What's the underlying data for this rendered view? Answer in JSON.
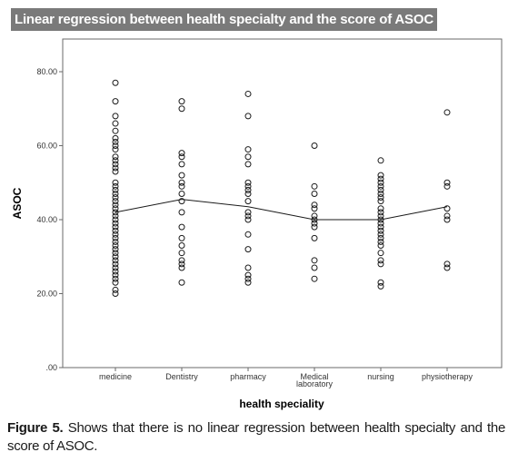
{
  "header": {
    "title": "Linear regression between health specialty and the score of ASOC"
  },
  "caption": {
    "lead": "Figure 5.",
    "text": " Shows that there is no linear regression between health specialty and the score of ASOC."
  },
  "chart_data": {
    "type": "scatter",
    "title": "",
    "xlabel": "health speciality",
    "ylabel": "ASOC",
    "categories": [
      "medicine",
      "Dentistry",
      "pharmacy",
      "Medical laboratory",
      "nursing",
      "physiotherapy"
    ],
    "category_labels": [
      [
        "medicine"
      ],
      [
        "Dentistry"
      ],
      [
        "pharmacy"
      ],
      [
        "Medical",
        "laboratory"
      ],
      [
        "nursing"
      ],
      [
        "physiotherapy"
      ]
    ],
    "yticks": [
      0,
      20,
      40,
      60,
      80
    ],
    "ytick_labels": [
      ".00",
      "20.00",
      "40.00",
      "60.00",
      "80.00"
    ],
    "ylim": [
      0,
      90
    ],
    "grid": false,
    "points": [
      [
        77,
        72,
        68,
        66,
        64,
        62,
        61,
        60,
        59,
        57,
        56,
        55,
        54,
        53,
        50,
        49,
        48,
        47,
        46,
        45,
        44,
        43,
        42,
        41,
        40,
        39,
        38,
        37,
        36,
        35,
        34,
        33,
        32,
        31,
        30,
        29,
        28,
        27,
        26,
        25,
        24,
        23,
        21,
        20
      ],
      [
        72,
        70,
        58,
        57,
        55,
        52,
        50,
        49,
        47,
        45,
        42,
        38,
        35,
        33,
        31,
        29,
        28,
        27,
        23
      ],
      [
        74,
        68,
        59,
        57,
        55,
        50,
        49,
        48,
        47,
        45,
        42,
        41,
        40,
        36,
        32,
        27,
        25,
        24,
        23
      ],
      [
        60,
        49,
        47,
        44,
        43,
        41,
        40,
        39,
        38,
        35,
        29,
        27,
        24
      ],
      [
        56,
        52,
        51,
        50,
        49,
        48,
        47,
        46,
        45,
        43,
        42,
        41,
        40,
        39,
        38,
        37,
        36,
        35,
        34,
        33,
        31,
        29,
        28,
        23,
        22
      ],
      [
        69,
        50,
        49,
        43,
        41,
        40,
        28,
        27
      ]
    ],
    "fit_line": [
      42,
      45.5,
      43.5,
      40,
      40,
      43.5
    ]
  }
}
